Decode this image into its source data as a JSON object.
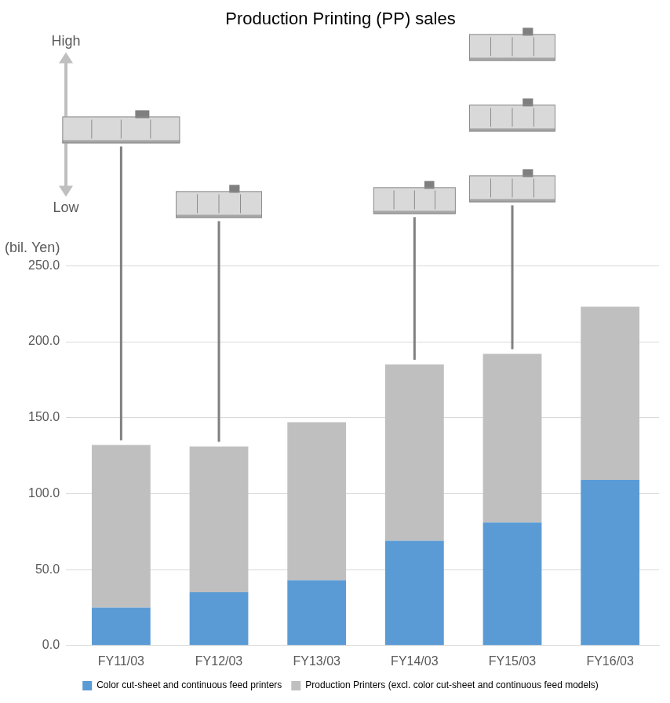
{
  "chart_data": {
    "type": "bar",
    "title": "Production Printing (PP) sales",
    "ylabel": "(bil. Yen)",
    "annotations": [
      "High",
      "Low"
    ],
    "categories": [
      "FY11/03",
      "FY12/03",
      "FY13/03",
      "FY14/03",
      "FY15/03",
      "FY16/03"
    ],
    "series": [
      {
        "name": "Color cut-sheet and continuous feed printers",
        "color": "#5b9bd5",
        "values": [
          25,
          35,
          43,
          69,
          81,
          109
        ]
      },
      {
        "name": "Production Printers (excl. color cut-sheet and continuous feed models)",
        "color": "#bfbfbf",
        "values": [
          107,
          96,
          104,
          116,
          111,
          114
        ]
      }
    ],
    "stacked": true,
    "ylim": [
      0,
      250
    ],
    "yticks": [
      {
        "value": 0,
        "label": "0.0"
      },
      {
        "value": 50,
        "label": "50.0"
      },
      {
        "value": 100,
        "label": "100.0"
      },
      {
        "value": 150,
        "label": "150.0"
      },
      {
        "value": 200,
        "label": "200.0"
      },
      {
        "value": 250,
        "label": "250.0"
      }
    ],
    "grid": true,
    "legend": "bottom"
  }
}
